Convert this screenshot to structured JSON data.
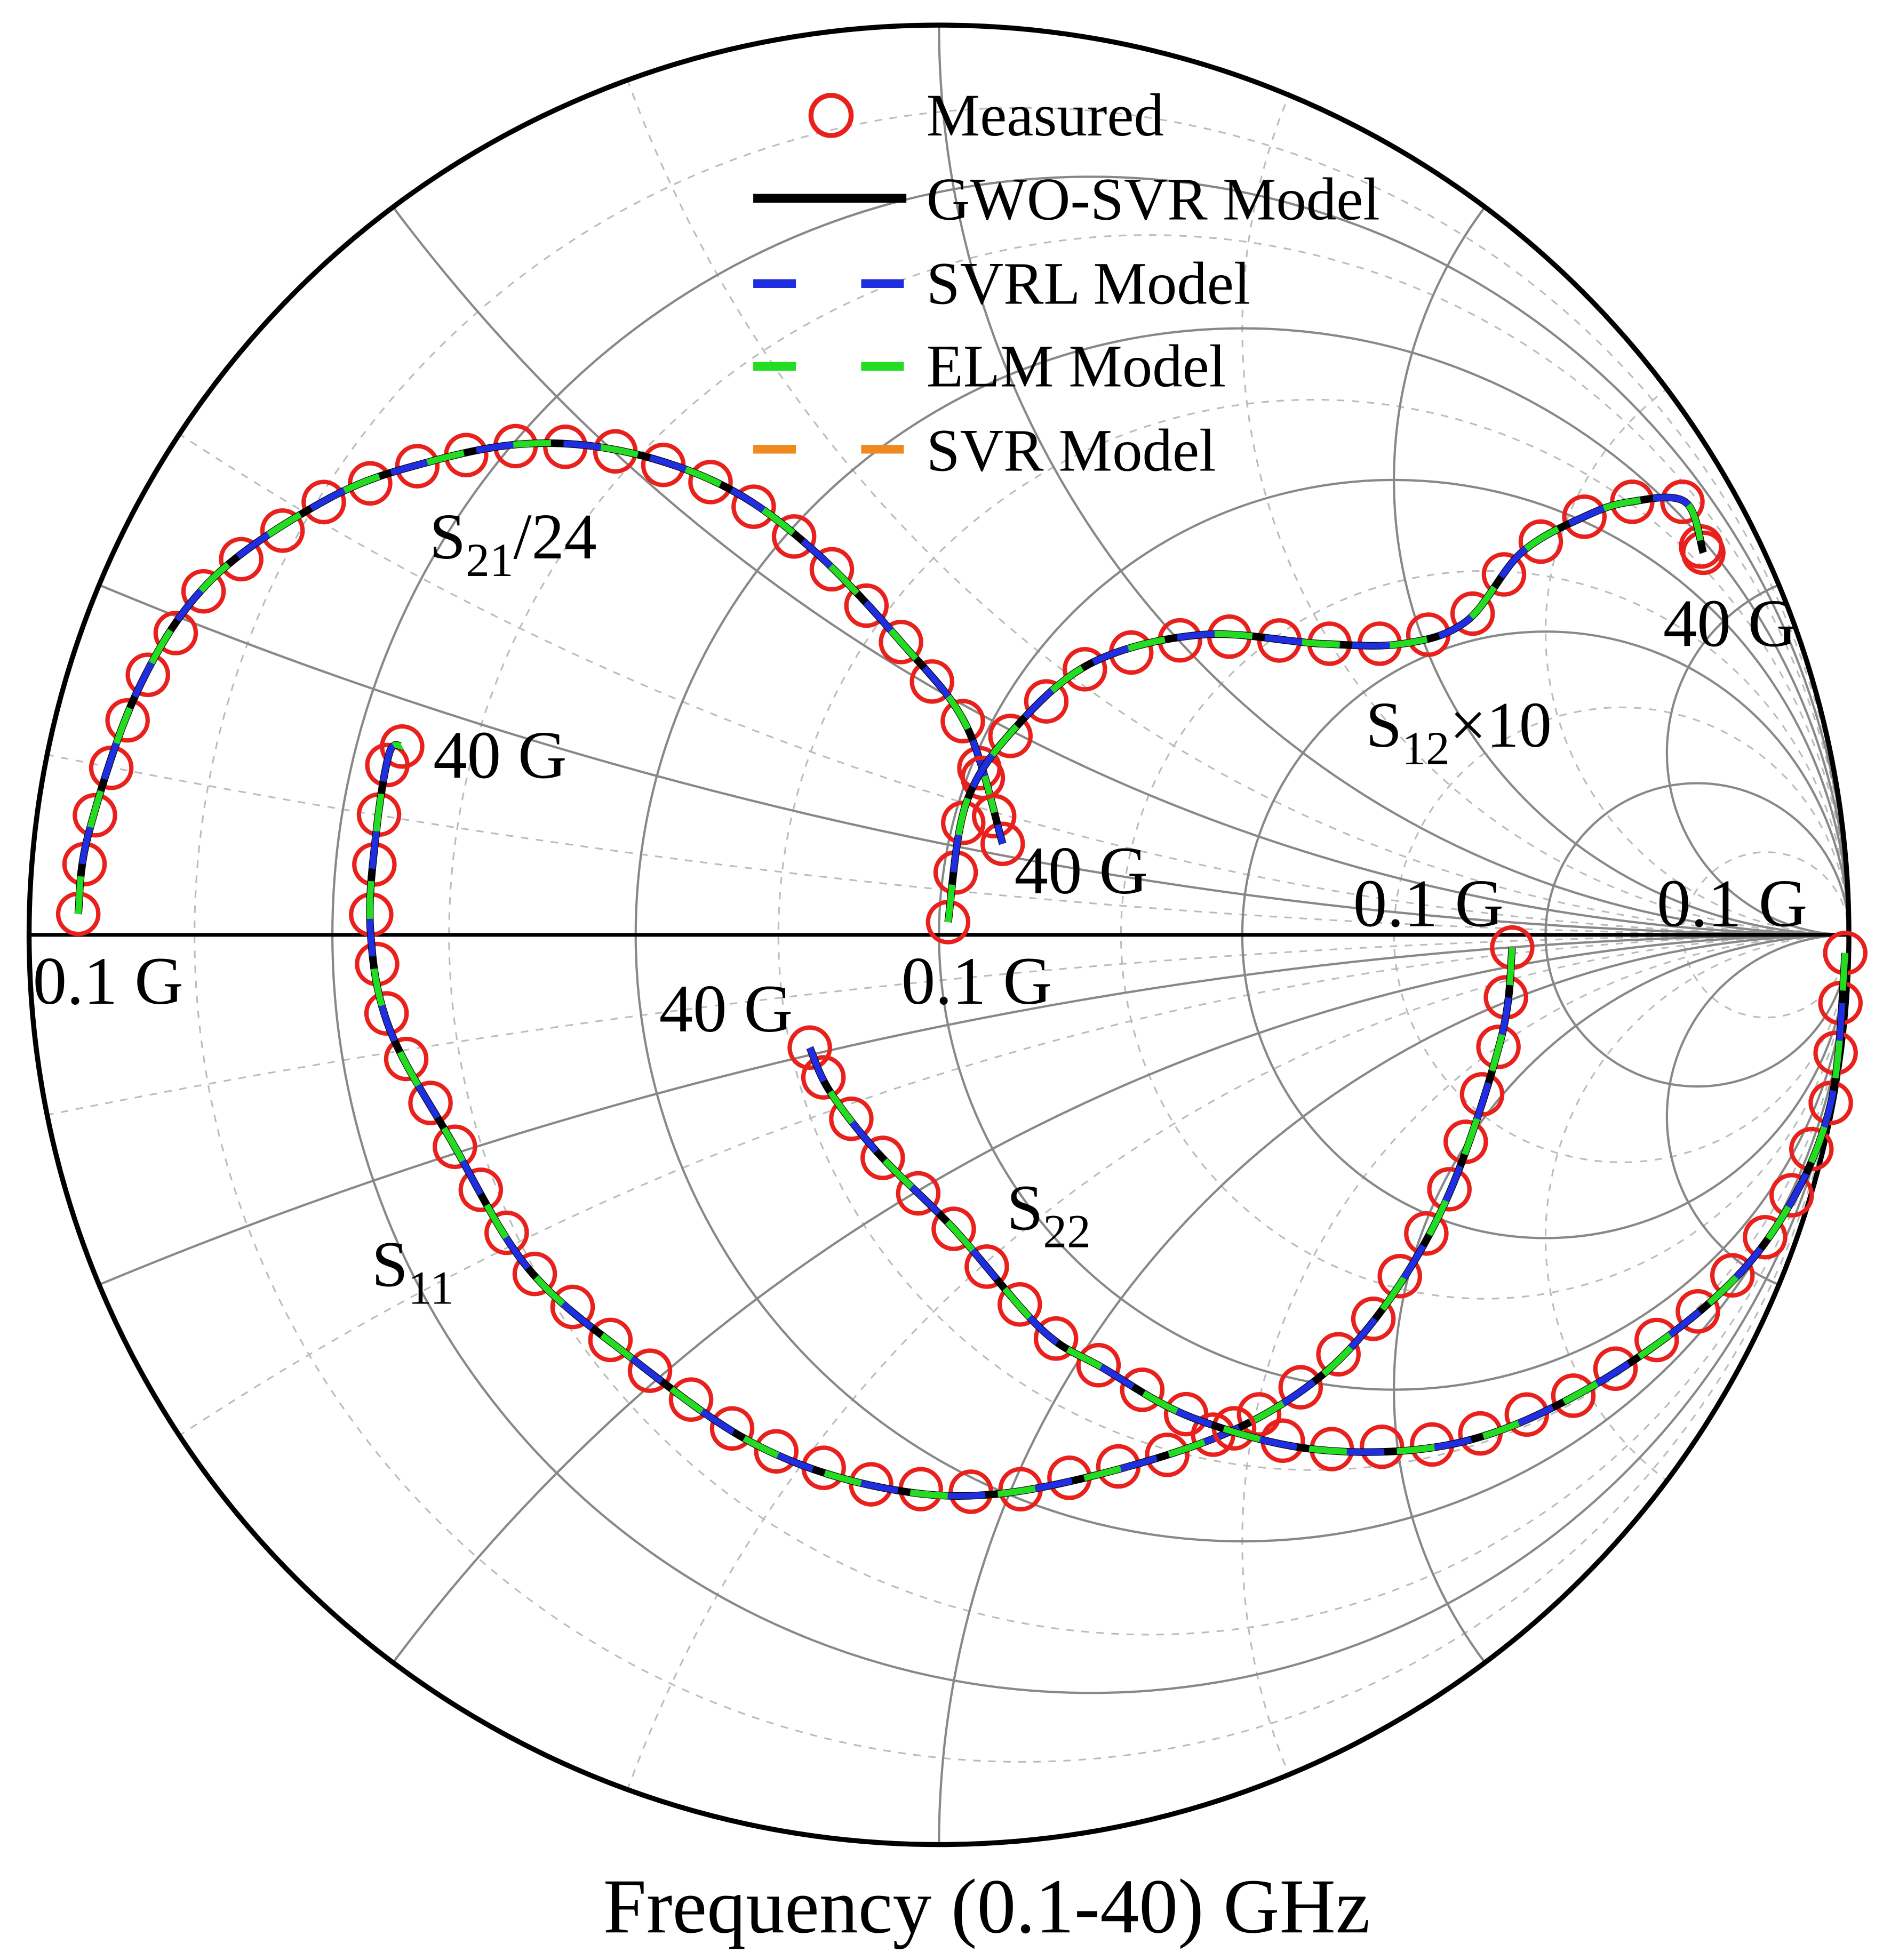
{
  "chart_data": {
    "type": "smith",
    "title": "",
    "xlabel": "Frequency (0.1-40) GHz",
    "grid": true,
    "resistance_circles": [
      0.2,
      0.5,
      1,
      2,
      5
    ],
    "resistance_circles_dashed": [
      0.1,
      0.3,
      0.7,
      1.5,
      3,
      10
    ],
    "reactance_arcs": [
      0.2,
      0.5,
      1,
      2,
      5
    ],
    "reactance_arcs_dashed": [
      0.1,
      0.3,
      0.7,
      1.5,
      3
    ],
    "legend": {
      "placement": "top-right",
      "entries": [
        {
          "label": "Measured",
          "style": "circle-marker",
          "color": "#e8211d"
        },
        {
          "label": "GWO-SVR Model",
          "style": "solid",
          "color": "#000000"
        },
        {
          "label": "SVRL Model",
          "style": "dashed",
          "color": "#1f2ee0"
        },
        {
          "label": "ELM Model",
          "style": "dashed",
          "color": "#22dd22"
        },
        {
          "label": "SVR Model",
          "style": "dashed",
          "color": "#f08a1c"
        }
      ]
    },
    "series": [
      {
        "name": "S21/24",
        "label_main": "S",
        "label_sub": "21",
        "label_suffix": "/24",
        "start_label": "0.1 G",
        "end_label": "40 G",
        "gamma": [
          [
            -0.946,
            0.023
          ],
          [
            -0.935,
            0.11
          ],
          [
            -0.88,
            0.27
          ],
          [
            -0.8,
            0.39
          ],
          [
            -0.67,
            0.48
          ],
          [
            -0.56,
            0.52
          ],
          [
            -0.45,
            0.54
          ],
          [
            -0.34,
            0.53
          ],
          [
            -0.23,
            0.49
          ],
          [
            -0.135,
            0.42
          ],
          [
            -0.04,
            0.32
          ],
          [
            0.03,
            0.23
          ],
          [
            0.07,
            0.1
          ]
        ]
      },
      {
        "name": "S12x10",
        "label_main": "S",
        "label_sub": "12",
        "label_suffix": "×10",
        "start_label": "0.1 G",
        "end_label": "40 G",
        "gamma": [
          [
            0.01,
            0.014
          ],
          [
            0.03,
            0.145
          ],
          [
            0.086,
            0.23
          ],
          [
            0.17,
            0.3
          ],
          [
            0.29,
            0.33
          ],
          [
            0.42,
            0.32
          ],
          [
            0.51,
            0.32
          ],
          [
            0.58,
            0.345
          ],
          [
            0.64,
            0.42
          ],
          [
            0.71,
            0.46
          ],
          [
            0.76,
            0.476
          ],
          [
            0.82,
            0.476
          ],
          [
            0.84,
            0.42
          ]
        ]
      },
      {
        "name": "S11",
        "label_main": "S",
        "label_sub": "11",
        "label_suffix": "",
        "start_label": "0.1 G",
        "end_label": "40 G",
        "gamma": [
          [
            0.63,
            -0.014
          ],
          [
            0.617,
            -0.117
          ],
          [
            0.555,
            -0.297
          ],
          [
            0.47,
            -0.434
          ],
          [
            0.375,
            -0.517
          ],
          [
            0.25,
            -0.572
          ],
          [
            0.07,
            -0.614
          ],
          [
            -0.066,
            -0.607
          ],
          [
            -0.204,
            -0.559
          ],
          [
            -0.342,
            -0.462
          ],
          [
            -0.452,
            -0.366
          ],
          [
            -0.535,
            -0.228
          ],
          [
            -0.604,
            -0.103
          ],
          [
            -0.625,
            0.007
          ],
          [
            -0.618,
            0.117
          ],
          [
            -0.604,
            0.2
          ],
          [
            -0.59,
            0.207
          ]
        ]
      },
      {
        "name": "S22",
        "label_main": "S",
        "label_sub": "22",
        "label_suffix": "",
        "start_label": "0.1 G",
        "end_label": "40 G",
        "gamma": [
          [
            0.996,
            -0.02
          ],
          [
            0.98,
            -0.186
          ],
          [
            0.927,
            -0.31
          ],
          [
            0.844,
            -0.407
          ],
          [
            0.706,
            -0.503
          ],
          [
            0.568,
            -0.559
          ],
          [
            0.417,
            -0.566
          ],
          [
            0.279,
            -0.531
          ],
          [
            0.18,
            -0.476
          ],
          [
            0.113,
            -0.434
          ],
          [
            0.017,
            -0.324
          ],
          [
            -0.066,
            -0.241
          ],
          [
            -0.12,
            -0.172
          ],
          [
            -0.142,
            -0.124
          ]
        ]
      }
    ]
  }
}
